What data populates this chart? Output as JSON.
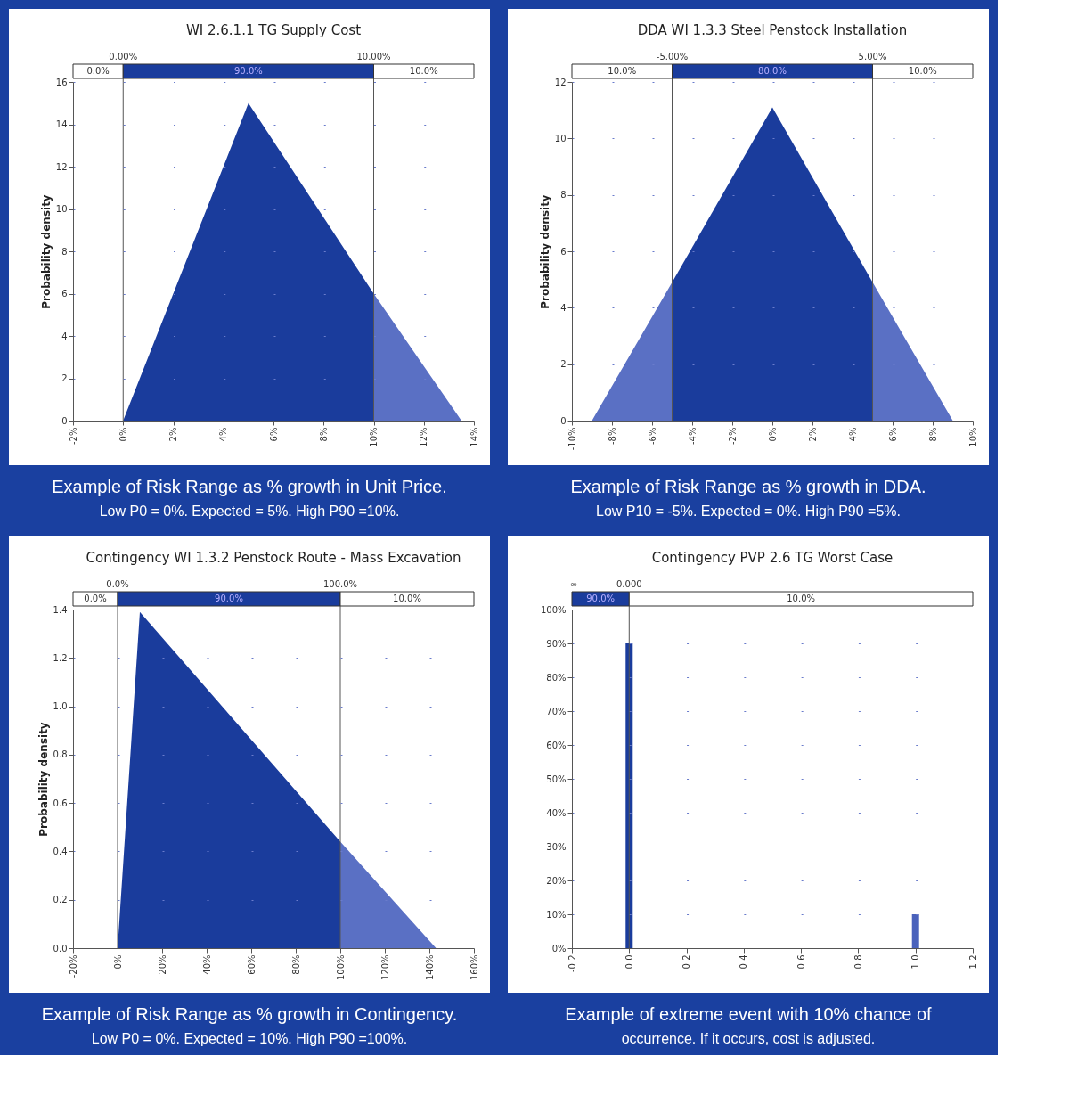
{
  "chart_data": [
    {
      "type": "area",
      "title": "WI 2.6.1.1 TG Supply Cost",
      "ylabel": "Probability density",
      "series": [
        {
          "color": "#1a3c9c",
          "x": [
            -2,
            0,
            5,
            10
          ],
          "values": [
            0,
            0,
            15,
            6
          ]
        },
        {
          "color": "#5a70c4",
          "x": [
            10,
            13.5,
            14
          ],
          "values": [
            6,
            0,
            0
          ]
        }
      ],
      "xlim": [
        -2,
        14
      ],
      "ylim": [
        0,
        16
      ],
      "xticks": [
        {
          "value": -2,
          "label": "-2%"
        },
        {
          "value": 0,
          "label": "0%"
        },
        {
          "value": 2,
          "label": "2%"
        },
        {
          "value": 4,
          "label": "4%"
        },
        {
          "value": 6,
          "label": "6%"
        },
        {
          "value": 8,
          "label": "8%"
        },
        {
          "value": 10,
          "label": "10%"
        },
        {
          "value": 12,
          "label": "12%"
        },
        {
          "value": 14,
          "label": "14%"
        }
      ],
      "yticks": [
        0,
        2,
        4,
        6,
        8,
        10,
        12,
        14,
        16
      ],
      "grid": "y",
      "ref_lines": [
        {
          "axis": "x",
          "value": 0,
          "label": "0.00%"
        },
        {
          "axis": "x",
          "value": 10,
          "label": "10.00%"
        }
      ],
      "annotations": [
        "0.0%",
        "90.0%",
        "10.0%",
        "Example of Risk Range as % growth in Unit Price.",
        "Low P0 = 0%. Expected = 5%. High P90 =10%."
      ]
    },
    {
      "type": "area",
      "title": "DDA WI 1.3.3 Steel Penstock Installation",
      "ylabel": "Probability density",
      "series": [
        {
          "color": "#5a70c4",
          "x": [
            -10,
            -9,
            -5
          ],
          "values": [
            0,
            0,
            4.9
          ]
        },
        {
          "color": "#1a3c9c",
          "x": [
            -5,
            0,
            5
          ],
          "values": [
            4.9,
            11.1,
            4.9
          ]
        },
        {
          "color": "#5a70c4",
          "x": [
            5,
            9,
            10
          ],
          "values": [
            4.9,
            0,
            0
          ]
        }
      ],
      "xlim": [
        -10,
        10
      ],
      "ylim": [
        0,
        12
      ],
      "xticks": [
        {
          "value": -10,
          "label": "-10%"
        },
        {
          "value": -8,
          "label": "-8%"
        },
        {
          "value": -6,
          "label": "-6%"
        },
        {
          "value": -4,
          "label": "-4%"
        },
        {
          "value": -2,
          "label": "-2%"
        },
        {
          "value": 0,
          "label": "0%"
        },
        {
          "value": 2,
          "label": "2%"
        },
        {
          "value": 4,
          "label": "4%"
        },
        {
          "value": 6,
          "label": "6%"
        },
        {
          "value": 8,
          "label": "8%"
        },
        {
          "value": 10,
          "label": "10%"
        }
      ],
      "yticks": [
        0,
        2,
        4,
        6,
        8,
        10,
        12
      ],
      "grid": "y",
      "ref_lines": [
        {
          "axis": "x",
          "value": -5,
          "label": "-5.00%"
        },
        {
          "axis": "x",
          "value": 5,
          "label": "5.00%"
        }
      ],
      "annotations": [
        "10.0%",
        "80.0%",
        "10.0%",
        "Example of Risk Range as % growth in DDA.",
        "Low P10 = -5%. Expected = 0%. High P90 =5%."
      ]
    },
    {
      "type": "area",
      "title": "Contingency WI 1.3.2 Penstock Route - Mass Excavation",
      "ylabel": "Probability density",
      "series": [
        {
          "color": "#1a3c9c",
          "x": [
            -20,
            0,
            10,
            100
          ],
          "values": [
            0,
            0,
            1.39,
            0.44
          ]
        },
        {
          "color": "#5a70c4",
          "x": [
            100,
            143,
            160
          ],
          "values": [
            0.44,
            0,
            0
          ]
        }
      ],
      "xlim": [
        -20,
        160
      ],
      "ylim": [
        0,
        1.4
      ],
      "xticks": [
        {
          "value": -20,
          "label": "-20%"
        },
        {
          "value": 0,
          "label": "0%"
        },
        {
          "value": 20,
          "label": "20%"
        },
        {
          "value": 40,
          "label": "40%"
        },
        {
          "value": 60,
          "label": "60%"
        },
        {
          "value": 80,
          "label": "80%"
        },
        {
          "value": 100,
          "label": "100%"
        },
        {
          "value": 120,
          "label": "120%"
        },
        {
          "value": 140,
          "label": "140%"
        },
        {
          "value": 160,
          "label": "160%"
        }
      ],
      "yticks": [
        {
          "value": 0,
          "label": "0.0"
        },
        {
          "value": 0.2,
          "label": "0.2"
        },
        {
          "value": 0.4,
          "label": "0.4"
        },
        {
          "value": 0.6,
          "label": "0.6"
        },
        {
          "value": 0.8,
          "label": "0.8"
        },
        {
          "value": 1,
          "label": "1.0"
        },
        {
          "value": 1.2,
          "label": "1.2"
        },
        {
          "value": 1.4,
          "label": "1.4"
        }
      ],
      "grid": "y",
      "ref_lines": [
        {
          "axis": "x",
          "value": 0,
          "label": "0.0%"
        },
        {
          "axis": "x",
          "value": 100,
          "label": "100.0%"
        }
      ],
      "annotations": [
        "0.0%",
        "90.0%",
        "10.0%",
        "Example of Risk Range as % growth in Contingency.",
        "Low P0 = 0%. Expected = 10%. High P90 =100%."
      ]
    },
    {
      "type": "bar",
      "title": "Contingency PVP 2.6 TG Worst Case",
      "x": [
        0,
        1
      ],
      "values": [
        90,
        10
      ],
      "colors": [
        "#1a3c9c",
        "#4a62bc"
      ],
      "xlim": [
        -0.2,
        1.2
      ],
      "ylim": [
        0,
        100
      ],
      "xticks": [
        {
          "value": -0.2,
          "label": "-0.2"
        },
        {
          "value": 0,
          "label": "0.0"
        },
        {
          "value": 0.2,
          "label": "0.2"
        },
        {
          "value": 0.4,
          "label": "0.4"
        },
        {
          "value": 0.6,
          "label": "0.6"
        },
        {
          "value": 0.8,
          "label": "0.8"
        },
        {
          "value": 1,
          "label": "1.0"
        },
        {
          "value": 1.2,
          "label": "1.2"
        }
      ],
      "yticks": [
        {
          "value": 0,
          "label": "0%"
        },
        {
          "value": 10,
          "label": "10%"
        },
        {
          "value": 20,
          "label": "20%"
        },
        {
          "value": 30,
          "label": "30%"
        },
        {
          "value": 40,
          "label": "40%"
        },
        {
          "value": 50,
          "label": "50%"
        },
        {
          "value": 60,
          "label": "60%"
        },
        {
          "value": 70,
          "label": "70%"
        },
        {
          "value": 80,
          "label": "80%"
        },
        {
          "value": 90,
          "label": "90%"
        },
        {
          "value": 100,
          "label": "100%"
        }
      ],
      "grid": "y",
      "ref_lines": [
        {
          "axis": "x",
          "value": 0,
          "label": "0.000"
        }
      ],
      "annotations": [
        "-∞",
        "90.0%",
        "10.0%",
        "Example of extreme event with 10% chance of",
        "occurrence. If it occurs, cost is adjusted."
      ]
    }
  ]
}
